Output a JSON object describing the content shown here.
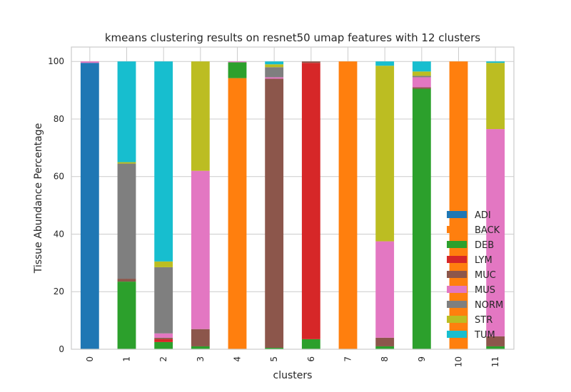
{
  "chart_data": {
    "type": "bar",
    "stacked": true,
    "title": "kmeans clustering results on resnet50 umap features with 12 clusters",
    "xlabel": "clusters",
    "ylabel": "Tissue Abundance Percentage",
    "ylim": [
      0,
      105
    ],
    "yticks": [
      0,
      20,
      40,
      60,
      80,
      100
    ],
    "grid": true,
    "legend_position": "lower-right",
    "categories": [
      "0",
      "1",
      "2",
      "3",
      "4",
      "5",
      "6",
      "7",
      "8",
      "9",
      "10",
      "11"
    ],
    "series": [
      {
        "name": "ADI",
        "color": "#1f77b4",
        "values": [
          99.5,
          0,
          0,
          0,
          0,
          0,
          0,
          0,
          0,
          0,
          0,
          0
        ]
      },
      {
        "name": "BACK",
        "color": "#ff7f0e",
        "values": [
          0,
          0,
          0,
          0,
          94.2,
          0,
          0,
          100,
          0,
          0,
          100,
          0
        ]
      },
      {
        "name": "DEB",
        "color": "#2ca02c",
        "values": [
          0,
          23.5,
          2.5,
          1.0,
          5.5,
          0.5,
          3.5,
          0,
          1.0,
          90.5,
          0,
          1.0
        ]
      },
      {
        "name": "LYM",
        "color": "#d62728",
        "values": [
          0,
          0,
          1.0,
          0,
          0,
          0,
          96.0,
          0,
          0,
          0,
          0,
          0
        ]
      },
      {
        "name": "MUC",
        "color": "#8c564b",
        "values": [
          0,
          1.0,
          0.5,
          6.0,
          0,
          93.5,
          0.5,
          0,
          3.0,
          0.5,
          0,
          3.5
        ]
      },
      {
        "name": "MUS",
        "color": "#e377c2",
        "values": [
          0.5,
          0,
          1.5,
          55.0,
          0.3,
          0.5,
          0,
          0,
          33.5,
          3.5,
          0,
          72.0
        ]
      },
      {
        "name": "NORM",
        "color": "#7f7f7f",
        "values": [
          0,
          40.0,
          23.0,
          0,
          0,
          3.5,
          0,
          0,
          0,
          0.5,
          0,
          0
        ]
      },
      {
        "name": "STR",
        "color": "#bcbd22",
        "values": [
          0,
          0.5,
          2.0,
          38.0,
          0,
          1.0,
          0,
          0,
          61.0,
          1.5,
          0,
          23.0
        ]
      },
      {
        "name": "TUM",
        "color": "#17becf",
        "values": [
          0,
          35.0,
          69.5,
          0,
          0,
          1.0,
          0,
          0,
          1.5,
          3.5,
          0,
          0.5
        ]
      }
    ]
  }
}
